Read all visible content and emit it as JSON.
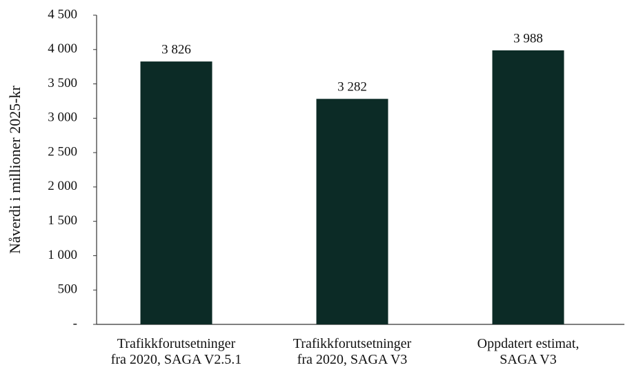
{
  "chart_data": {
    "type": "bar",
    "y_label": "Nåverdi i millioner 2025-kr",
    "categories": [
      "Trafikkforutsetninger\nfra 2020, SAGA V2.5.1",
      "Trafikkforutsetninger\nfra 2020, SAGA V3",
      "Oppdatert estimat,\nSAGA V3"
    ],
    "values": [
      3826,
      3282,
      3988
    ],
    "value_labels": [
      "3 826",
      "3 282",
      "3 988"
    ],
    "color": "#0c2b26",
    "ylim": [
      0,
      4500
    ],
    "yticks": [
      {
        "value": 0,
        "label": "-"
      },
      500,
      {
        "value": 1000,
        "label": "1 000"
      },
      {
        "value": 1500,
        "label": "1 500"
      },
      {
        "value": 2000,
        "label": "2 000"
      },
      {
        "value": 2500,
        "label": "2 500"
      },
      {
        "value": 3000,
        "label": "3 000"
      },
      {
        "value": 3500,
        "label": "3 500"
      },
      {
        "value": 4000,
        "label": "4 000"
      },
      {
        "value": 4500,
        "label": "4 500"
      }
    ]
  }
}
